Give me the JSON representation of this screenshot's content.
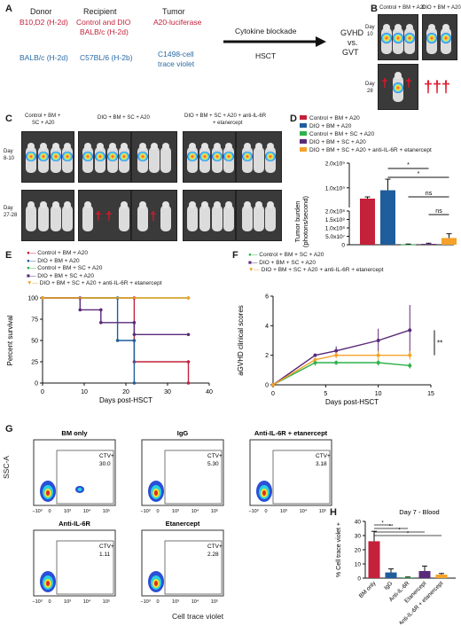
{
  "panels": {
    "A": {
      "letter": "A",
      "donor_header": "Donor",
      "recipient_header": "Recipient",
      "tumor_header": "Tumor",
      "donor1": "B10,D2 (H-2d)",
      "recipient1a": "Control and DIO",
      "recipient1b": "BALB/c (H-2d)",
      "tumor1": "A20-luciferase",
      "donor2": "BALB/c (H-2d)",
      "recipient2": "C57BL/6 (H-2b)",
      "tumor2a": "C1498-cell",
      "tumor2b": "trace violet",
      "arrow_top": "Cytokine blockade",
      "arrow_bottom": "HSCT",
      "result1": "GVHD",
      "result2": "vs.",
      "result3": "GVT"
    },
    "B": {
      "letter": "B",
      "group1": "Control + BM + A20",
      "group2": "DIO + BM + A20",
      "day10": "Day",
      "day10n": "10",
      "day28": "Day",
      "day28n": "28"
    },
    "C": {
      "letter": "C",
      "group1a": "Control + BM +",
      "group1b": "SC + A20",
      "group2": "DIO + BM + SC + A20",
      "group3a": "DIO + BM + SC + A20 + anti-IL-6R",
      "group3b": "+ etanercept",
      "dayA": "Day",
      "dayAn": "8-10",
      "dayB": "Day",
      "dayBn": "27-28"
    },
    "D": {
      "letter": "D",
      "legend": [
        {
          "label": "Control + BM + A20",
          "color": "#c4213a"
        },
        {
          "label": "DIO + BM + A20",
          "color": "#1f5d9c"
        },
        {
          "label": "Control + BM + SC + A20",
          "color": "#2fb24a"
        },
        {
          "label": "DIO + BM + SC + A20",
          "color": "#5a2a7a"
        },
        {
          "label": "DIO + BM + SC + A20 + anti-IL-6R + etanercept",
          "color": "#f4a22a"
        }
      ],
      "ylabel1": "Tumor burden",
      "ylabel2": "(photons/second)",
      "ticks": [
        "0",
        "5.0x10⁷",
        "1.0x10⁸",
        "1.5x10⁸",
        "2.0x10⁸",
        "1.0x10⁹",
        "2.0x10⁹"
      ],
      "sig": [
        "*",
        "*",
        "ns",
        "ns"
      ]
    },
    "E": {
      "letter": "E",
      "legend": [
        {
          "label": "Control + BM + A20",
          "color": "#c4213a"
        },
        {
          "label": "DIO + BM + A20",
          "color": "#1f5d9c"
        },
        {
          "label": "Control + BM + SC + A20",
          "color": "#2fb24a"
        },
        {
          "label": "DIO + BM + SC + A20",
          "color": "#5a2a7a"
        },
        {
          "label": "DIO + BM + SC + A20 + anti-IL-6R + etanercept",
          "color": "#f4a22a"
        }
      ],
      "ylabel": "Percent survival",
      "xlabel": "Days post-HSCT",
      "sig": [
        "*",
        "**",
        "***"
      ]
    },
    "F": {
      "letter": "F",
      "legend": [
        {
          "label": "Control + BM + SC + A20",
          "color": "#2fb24a"
        },
        {
          "label": "DIO + BM + SC + A20",
          "color": "#5a2a7a"
        },
        {
          "label": "DIO + BM + SC + A20 + anti-IL-6R + etanercept",
          "color": "#f4a22a"
        }
      ],
      "ylabel": "aGVHD clinical scores",
      "xlabel": "Days post-HSCT",
      "sig": "**"
    },
    "G": {
      "letter": "G",
      "ylabel": "SSC-A",
      "xlabel": "Cell trace violet",
      "plots": [
        {
          "title": "BM only",
          "gate": "CTV+",
          "value": "30.0"
        },
        {
          "title": "IgG",
          "gate": "CTV+",
          "value": "5.30"
        },
        {
          "title": "Anti-IL-6R + etanercept",
          "gate": "CTV+",
          "value": "3.18"
        },
        {
          "title": "Anti-IL-6R",
          "gate": "CTV+",
          "value": "1.11"
        },
        {
          "title": "Etanercept",
          "gate": "CTV+",
          "value": "2.28"
        }
      ],
      "xticks": [
        "−10³",
        "0",
        "10³",
        "10⁴",
        "10⁵"
      ]
    },
    "H": {
      "letter": "H",
      "title": "Day 7 - Blood",
      "ylabel": "% Cell trace violet +",
      "sig": [
        "*",
        "**",
        "*",
        "*"
      ]
    }
  },
  "chart_data": [
    {
      "panel": "D",
      "type": "bar",
      "categories": [
        "Control + BM + A20",
        "DIO + BM + A20",
        "Control + BM + SC + A20",
        "DIO + BM + SC + A20",
        "DIO + BM + SC + A20 + anti-IL-6R + etanercept"
      ],
      "colors": [
        "#c4213a",
        "#1f5d9c",
        "#2fb24a",
        "#5a2a7a",
        "#f4a22a"
      ],
      "values": [
        560000000,
        900000000,
        2000000,
        5000000,
        40000000
      ],
      "errors": [
        70000000,
        450000000,
        2000000,
        4000000,
        25000000
      ],
      "ylabel": "Tumor burden (photons/second)",
      "yaxis": "broken"
    },
    {
      "panel": "E",
      "type": "line",
      "xlabel": "Days post-HSCT",
      "ylabel": "Percent survival",
      "xlim": [
        0,
        40
      ],
      "ylim": [
        0,
        100
      ],
      "xticks": [
        0,
        10,
        20,
        30,
        40
      ],
      "yticks": [
        0,
        25,
        50,
        75,
        100
      ],
      "series": [
        {
          "name": "Control + BM + A20",
          "color": "#c4213a",
          "x": [
            0,
            22,
            22,
            35,
            35
          ],
          "y": [
            100,
            100,
            25,
            25,
            0
          ]
        },
        {
          "name": "DIO + BM + A20",
          "color": "#1f5d9c",
          "x": [
            0,
            18,
            18,
            22,
            22
          ],
          "y": [
            100,
            100,
            50,
            50,
            0
          ]
        },
        {
          "name": "Control + BM + SC + A20",
          "color": "#2fb24a",
          "x": [
            0,
            35
          ],
          "y": [
            100,
            100
          ]
        },
        {
          "name": "DIO + BM + SC + A20",
          "color": "#5a2a7a",
          "x": [
            0,
            9,
            9,
            14,
            14,
            22,
            22,
            35
          ],
          "y": [
            100,
            100,
            86,
            86,
            71,
            71,
            57,
            57
          ]
        },
        {
          "name": "DIO + BM + SC + A20 + anti-IL-6R + etanercept",
          "color": "#f4a22a",
          "x": [
            0,
            35
          ],
          "y": [
            100,
            100
          ]
        }
      ]
    },
    {
      "panel": "F",
      "type": "line",
      "xlabel": "Days post-HSCT",
      "ylabel": "aGVHD clinical scores",
      "xlim": [
        0,
        15
      ],
      "ylim": [
        0,
        6
      ],
      "xticks": [
        0,
        5,
        10,
        15
      ],
      "yticks": [
        0,
        2,
        4,
        6
      ],
      "series": [
        {
          "name": "Control + BM + SC + A20",
          "color": "#2fb24a",
          "x": [
            0,
            4,
            6,
            10,
            13
          ],
          "y": [
            0,
            1.5,
            1.5,
            1.5,
            1.3
          ]
        },
        {
          "name": "DIO + BM + SC + A20",
          "color": "#5a2a7a",
          "x": [
            0,
            4,
            6,
            10,
            13
          ],
          "y": [
            0,
            2.0,
            2.3,
            3.0,
            3.7
          ]
        },
        {
          "name": "DIO + BM + SC + A20 + anti-IL-6R + etanercept",
          "color": "#f4a22a",
          "x": [
            0,
            4,
            6,
            10,
            13
          ],
          "y": [
            0,
            1.7,
            2.0,
            2.0,
            2.0
          ]
        }
      ]
    },
    {
      "panel": "H",
      "type": "bar",
      "title": "Day 7 - Blood",
      "categories": [
        "BM only",
        "IgG",
        "Anti-IL-6R",
        "Etanercept",
        "Anti-IL-6R + etanercept"
      ],
      "colors": [
        "#c4213a",
        "#1f5d9c",
        "#2fb24a",
        "#5a2a7a",
        "#f4a22a"
      ],
      "values": [
        26,
        4,
        0.5,
        5,
        2.5
      ],
      "errors": [
        7,
        2.5,
        0.3,
        3.5,
        0.8
      ],
      "ylabel": "% Cell trace violet +",
      "ylim": [
        0,
        40
      ],
      "yticks": [
        0,
        10,
        20,
        30,
        40
      ]
    }
  ]
}
